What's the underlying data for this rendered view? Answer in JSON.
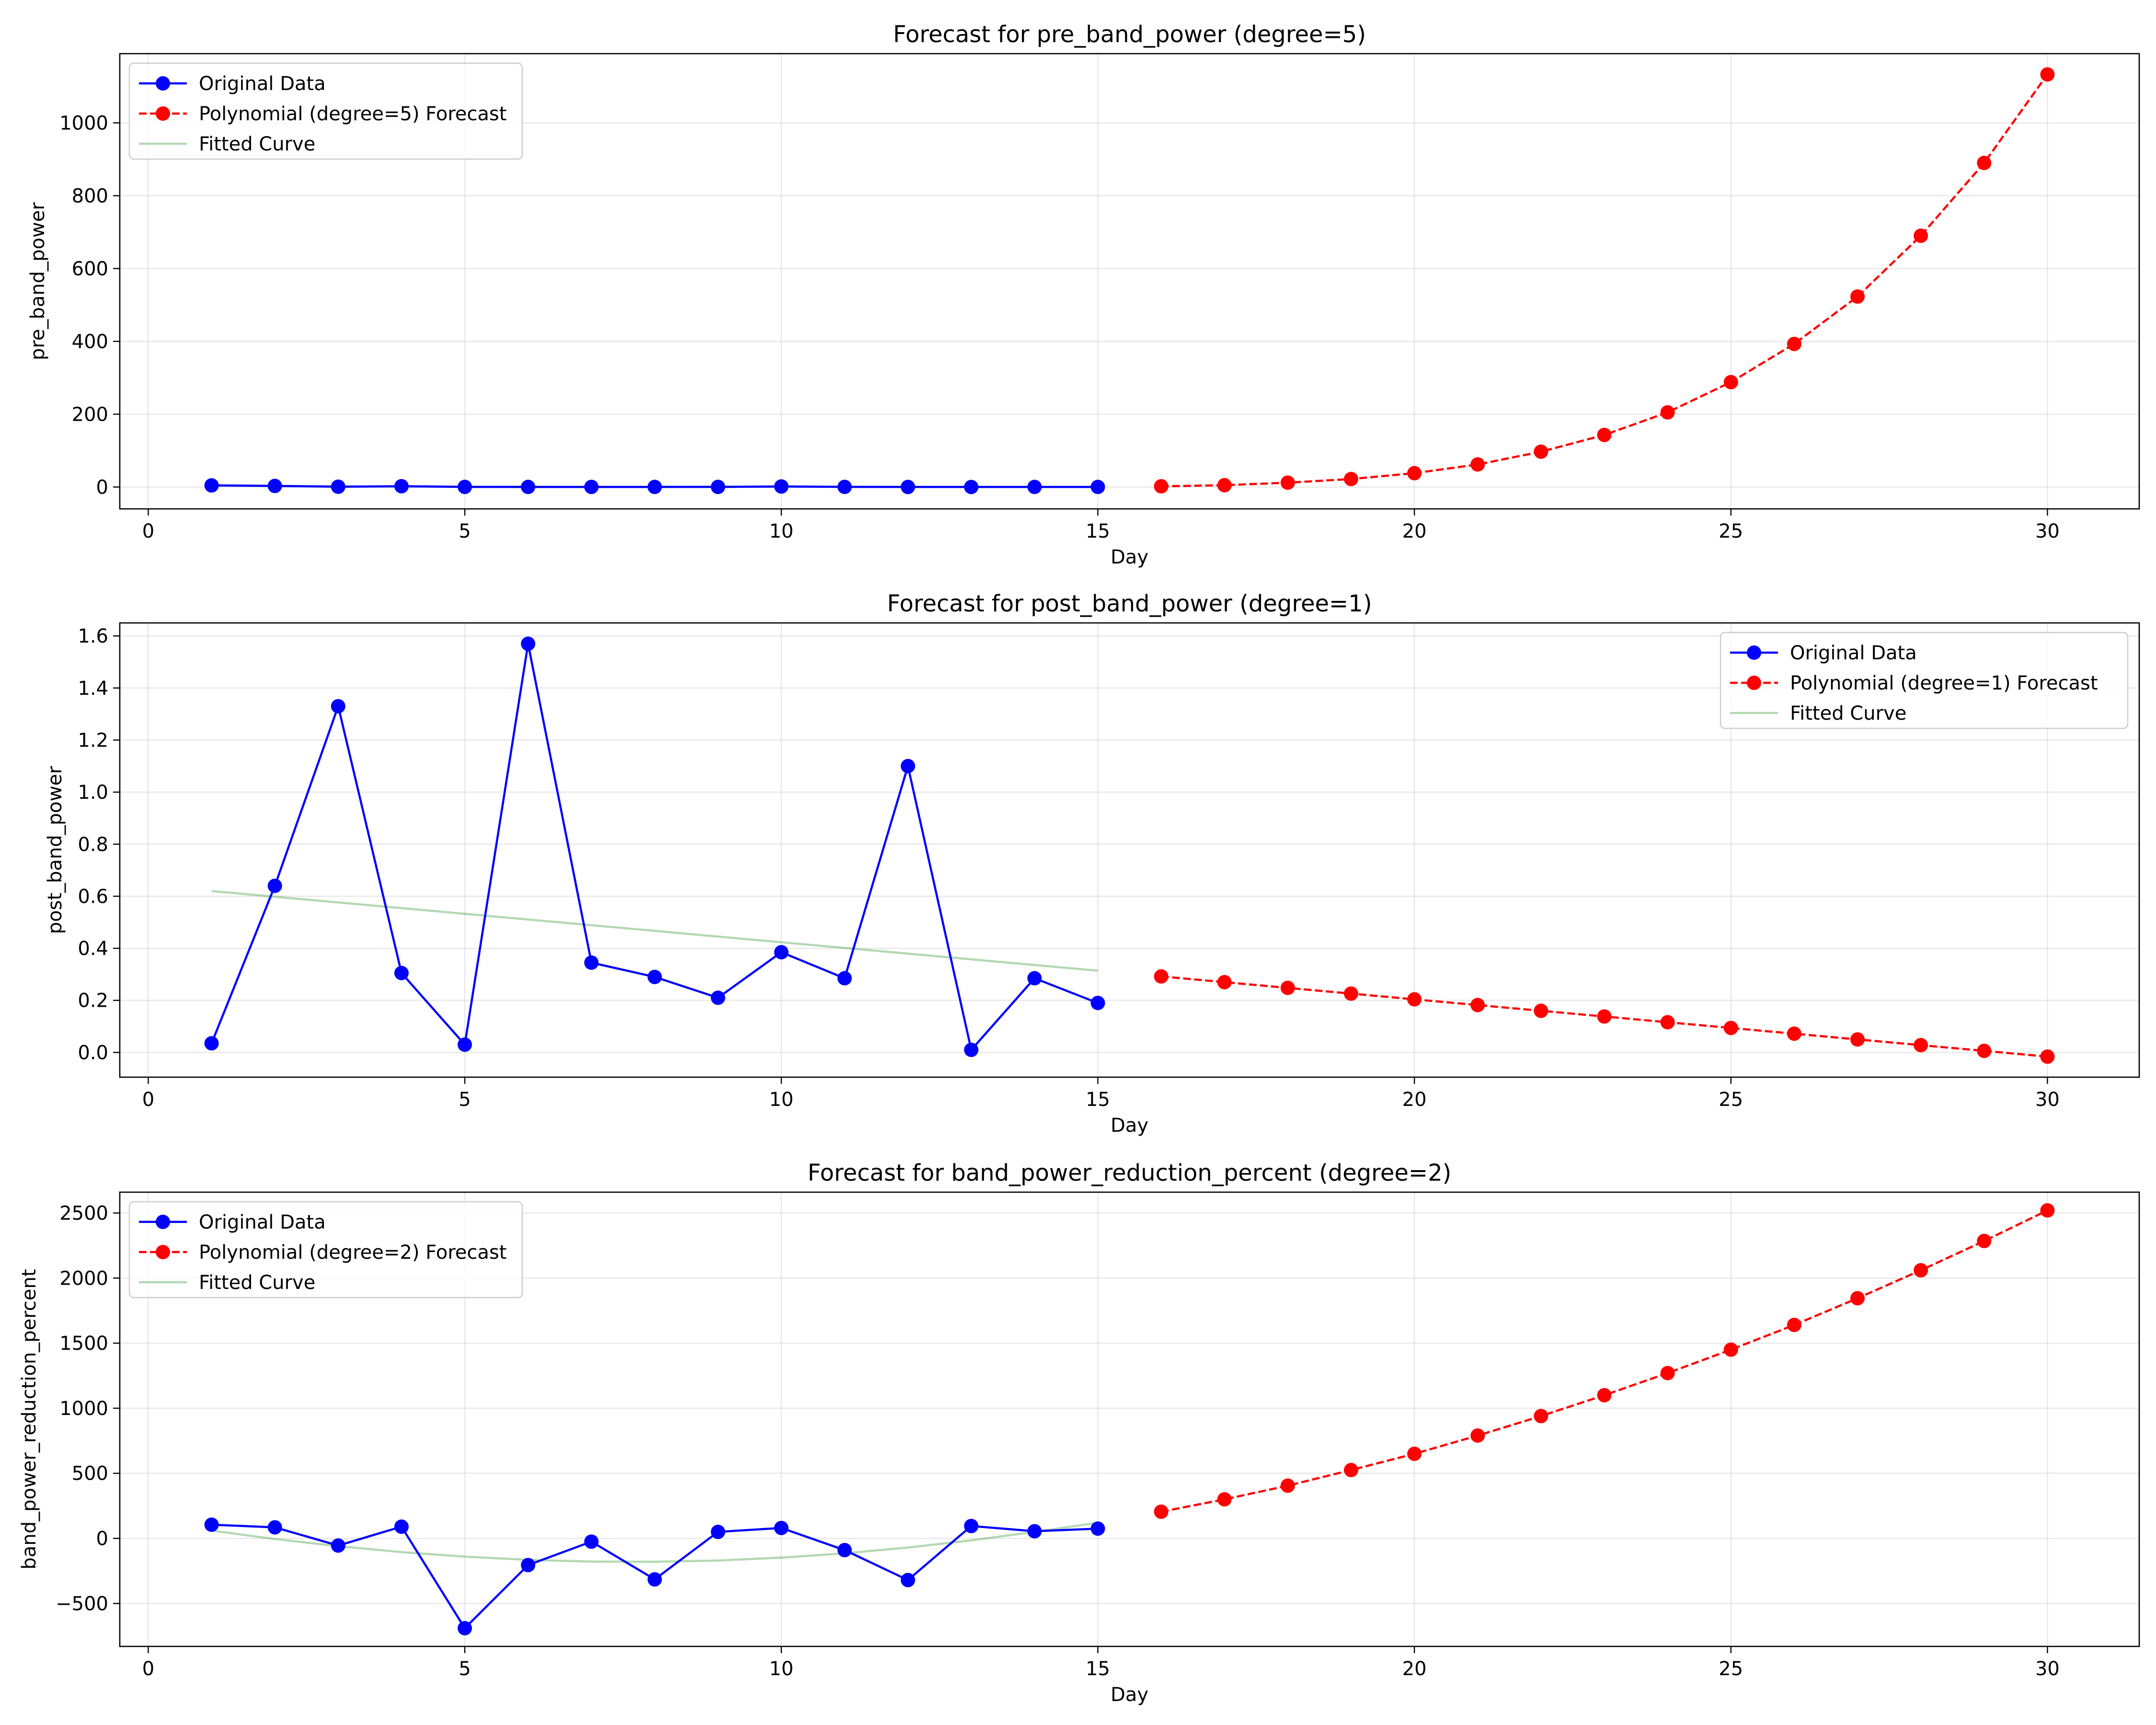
{
  "colors": {
    "original": "#0000ff",
    "forecast": "#ff0000",
    "fitted": "#008000"
  },
  "chart_data": [
    {
      "type": "line",
      "title": "Forecast for pre_band_power (degree=5)",
      "xlabel": "Day",
      "ylabel": "pre_band_power",
      "xlim": [
        -0.45,
        31.45
      ],
      "ylim": [
        -60,
        1190
      ],
      "xticks": [
        0,
        5,
        10,
        15,
        20,
        25,
        30
      ],
      "yticks": [
        0,
        200,
        400,
        600,
        800,
        1000
      ],
      "grid": true,
      "legend_position": "top-left",
      "series": [
        {
          "name": "Original Data",
          "style": "solid-markers",
          "x": [
            1,
            2,
            3,
            4,
            5,
            6,
            7,
            8,
            9,
            10,
            11,
            12,
            13,
            14,
            15
          ],
          "y": [
            4.5,
            3.0,
            0.8,
            2.2,
            0.4,
            0.3,
            0.3,
            0.3,
            0.4,
            1.5,
            0.4,
            0.2,
            0.1,
            0.3,
            0.3
          ]
        },
        {
          "name": "Polynomial (degree=5) Forecast",
          "style": "dashed-markers",
          "x": [
            16,
            17,
            18,
            19,
            20,
            21,
            22,
            23,
            24,
            25,
            26,
            27,
            28,
            29,
            30
          ],
          "y": [
            2,
            5,
            12,
            22,
            38,
            62,
            97,
            143,
            205,
            288,
            393,
            523,
            690,
            890,
            1133
          ]
        },
        {
          "name": "Fitted Curve",
          "style": "line",
          "x": [
            1,
            2,
            3,
            4,
            5,
            6,
            7,
            8,
            9,
            10,
            11,
            12,
            13,
            14,
            15
          ],
          "y": [
            3.8,
            3.1,
            1.8,
            1.2,
            0.8,
            0.6,
            0.4,
            0.4,
            0.6,
            0.9,
            0.8,
            0.4,
            0.1,
            0.2,
            0.4
          ]
        }
      ]
    },
    {
      "type": "line",
      "title": "Forecast for post_band_power (degree=1)",
      "xlabel": "Day",
      "ylabel": "post_band_power",
      "xlim": [
        -0.45,
        31.45
      ],
      "ylim": [
        -0.095,
        1.65
      ],
      "xticks": [
        0,
        5,
        10,
        15,
        20,
        25,
        30
      ],
      "yticks": [
        0.0,
        0.2,
        0.4,
        0.6,
        0.8,
        1.0,
        1.2,
        1.4,
        1.6
      ],
      "ytick_decimals": 1,
      "grid": true,
      "legend_position": "top-right",
      "series": [
        {
          "name": "Original Data",
          "style": "solid-markers",
          "x": [
            1,
            2,
            3,
            4,
            5,
            6,
            7,
            8,
            9,
            10,
            11,
            12,
            13,
            14,
            15
          ],
          "y": [
            0.035,
            0.64,
            1.33,
            0.305,
            0.03,
            1.57,
            0.345,
            0.29,
            0.21,
            0.385,
            0.285,
            1.1,
            0.01,
            0.285,
            0.19
          ]
        },
        {
          "name": "Polynomial (degree=1) Forecast",
          "style": "dashed-markers",
          "x": [
            16,
            17,
            18,
            19,
            20,
            21,
            22,
            23,
            24,
            25,
            26,
            27,
            28,
            29,
            30
          ],
          "y": [
            0.292,
            0.27,
            0.248,
            0.226,
            0.204,
            0.182,
            0.16,
            0.138,
            0.116,
            0.094,
            0.072,
            0.05,
            0.028,
            0.006,
            -0.016
          ]
        },
        {
          "name": "Fitted Curve",
          "style": "line",
          "x": [
            1,
            15
          ],
          "y": [
            0.62,
            0.314
          ]
        }
      ]
    },
    {
      "type": "line",
      "title": "Forecast for band_power_reduction_percent (degree=2)",
      "xlabel": "Day",
      "ylabel": "band_power_reduction_percent",
      "xlim": [
        -0.45,
        31.45
      ],
      "ylim": [
        -830,
        2660
      ],
      "xticks": [
        0,
        5,
        10,
        15,
        20,
        25,
        30
      ],
      "yticks": [
        -500,
        0,
        500,
        1000,
        1500,
        2000,
        2500
      ],
      "grid": true,
      "legend_position": "top-left",
      "series": [
        {
          "name": "Original Data",
          "style": "solid-markers",
          "x": [
            1,
            2,
            3,
            4,
            5,
            6,
            7,
            8,
            9,
            10,
            11,
            12,
            13,
            14,
            15
          ],
          "y": [
            105,
            85,
            -55,
            90,
            -690,
            -205,
            -25,
            -315,
            50,
            80,
            -90,
            -320,
            95,
            55,
            75
          ]
        },
        {
          "name": "Polynomial (degree=2) Forecast",
          "style": "dashed-markers",
          "x": [
            16,
            17,
            18,
            19,
            20,
            21,
            22,
            23,
            24,
            25,
            26,
            27,
            28,
            29,
            30
          ],
          "y": [
            205,
            300,
            405,
            525,
            650,
            790,
            940,
            1100,
            1270,
            1450,
            1640,
            1845,
            2060,
            2285,
            2520
          ]
        },
        {
          "name": "Fitted Curve",
          "style": "line",
          "x": [
            1,
            2,
            3,
            4,
            5,
            6,
            7,
            8,
            9,
            10,
            11,
            12,
            13,
            14,
            15
          ],
          "y": [
            60,
            -5,
            -60,
            -105,
            -140,
            -165,
            -178,
            -180,
            -170,
            -148,
            -115,
            -70,
            -15,
            50,
            120
          ]
        }
      ]
    }
  ]
}
